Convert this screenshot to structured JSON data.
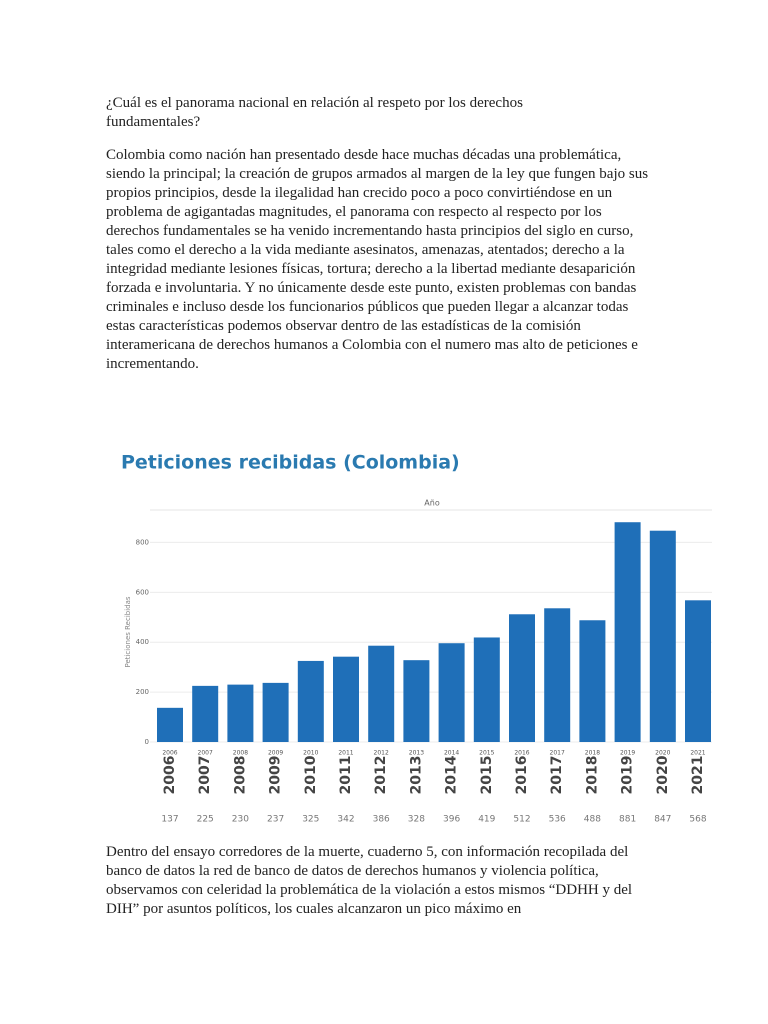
{
  "document": {
    "question": "¿Cuál es el panorama nacional en relación al respeto por los derechos fundamentales?",
    "paragraph_1": "Colombia como nación han presentado desde hace muchas décadas una problemática, siendo la principal; la creación de grupos armados al margen de la ley que fungen bajo sus propios principios, desde la ilegalidad han crecido poco a poco convirtiéndose en un problema de agigantadas magnitudes, el panorama con respecto al respecto por los derechos fundamentales se ha venido incrementando hasta principios del siglo en curso, tales como el derecho a la vida mediante asesinatos, amenazas, atentados; derecho a la integridad mediante lesiones físicas, tortura; derecho a la libertad mediante desaparición forzada e involuntaria. Y no únicamente desde este punto, existen problemas con bandas criminales e incluso desde los funcionarios públicos que pueden llegar a alcanzar todas estas características podemos observar dentro de las estadísticas de la comisión interamericana de derechos humanos a Colombia con el numero mas alto de peticiones e incrementando.",
    "paragraph_2": "Dentro del ensayo corredores de la muerte, cuaderno 5, con información recopilada del banco de datos la red de banco de datos de derechos humanos y violencia política, observamos con celeridad la problemática de la violación a estos mismos “DDHH y del DIH” por asuntos políticos, los cuales alcanzaron un pico máximo en"
  },
  "chart_data": {
    "type": "bar",
    "title": "Peticiones recibidas (Colombia)",
    "x_label": "Año",
    "y_label": "Peticiones Recibidas",
    "categories": [
      "2006",
      "2007",
      "2008",
      "2009",
      "2010",
      "2011",
      "2012",
      "2013",
      "2014",
      "2015",
      "2016",
      "2017",
      "2018",
      "2019",
      "2020",
      "2021"
    ],
    "values": [
      137,
      225,
      230,
      237,
      325,
      342,
      386,
      328,
      396,
      419,
      512,
      536,
      488,
      881,
      847,
      568
    ],
    "color": "#1f6fb8",
    "ylim": [
      0,
      930
    ],
    "yticks": [
      0,
      200,
      400,
      600,
      800
    ],
    "grid": true
  }
}
